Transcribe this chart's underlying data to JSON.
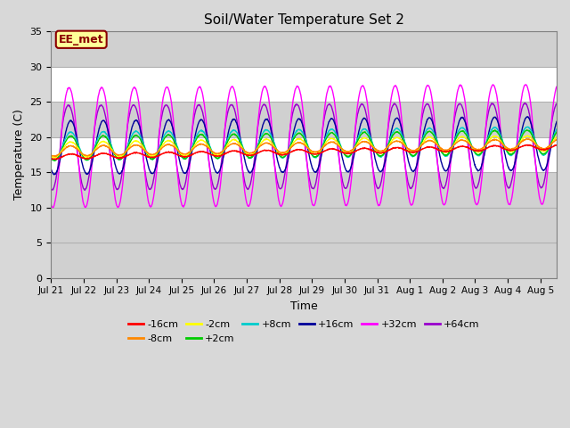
{
  "title": "Soil/Water Temperature Set 2",
  "xlabel": "Time",
  "ylabel": "Temperature (C)",
  "ylim": [
    0,
    35
  ],
  "yticks": [
    0,
    5,
    10,
    15,
    20,
    25,
    30,
    35
  ],
  "annotation_text": "EE_met",
  "annotation_color": "#8B0000",
  "annotation_bg": "#FFFF99",
  "annotation_border": "#8B0000",
  "series": [
    {
      "label": "-16cm",
      "color": "#FF0000",
      "base": 17.2,
      "amplitude": 0.35,
      "phase_shift": 0.35,
      "trend": 0.09
    },
    {
      "label": "-8cm",
      "color": "#FF8800",
      "base": 18.0,
      "amplitude": 0.7,
      "phase_shift": 0.35,
      "trend": 0.07
    },
    {
      "label": "-2cm",
      "color": "#FFFF00",
      "base": 18.2,
      "amplitude": 1.1,
      "phase_shift": 0.35,
      "trend": 0.06
    },
    {
      "label": "+2cm",
      "color": "#00CC00",
      "base": 18.4,
      "amplitude": 1.7,
      "phase_shift": 0.35,
      "trend": 0.06
    },
    {
      "label": "+8cm",
      "color": "#00CCCC",
      "base": 18.7,
      "amplitude": 2.0,
      "phase_shift": 0.35,
      "trend": 0.05
    },
    {
      "label": "+16cm",
      "color": "#000099",
      "base": 18.5,
      "amplitude": 3.8,
      "phase_shift": 0.35,
      "trend": 0.04
    },
    {
      "label": "+32cm",
      "color": "#FF00FF",
      "base": 18.5,
      "amplitude": 8.5,
      "phase_shift": 0.3,
      "trend": 0.03
    },
    {
      "label": "+64cm",
      "color": "#9900CC",
      "base": 18.5,
      "amplitude": 6.0,
      "phase_shift": 0.28,
      "trend": 0.02
    }
  ],
  "xtick_labels": [
    "Jul 21",
    "Jul 22",
    "Jul 23",
    "Jul 24",
    "Jul 25",
    "Jul 26",
    "Jul 27",
    "Jul 28",
    "Jul 29",
    "Jul 30",
    "Jul 31",
    "Aug 1",
    "Aug 2",
    "Aug 3",
    "Aug 4",
    "Aug 5"
  ],
  "background_color": "#D8D8D8",
  "plot_bg_upper": "#FFFFFF",
  "plot_bg_lower": "#C8C8C8",
  "grid_color": "#C0C0C0",
  "figsize": [
    6.4,
    4.8
  ],
  "dpi": 100
}
